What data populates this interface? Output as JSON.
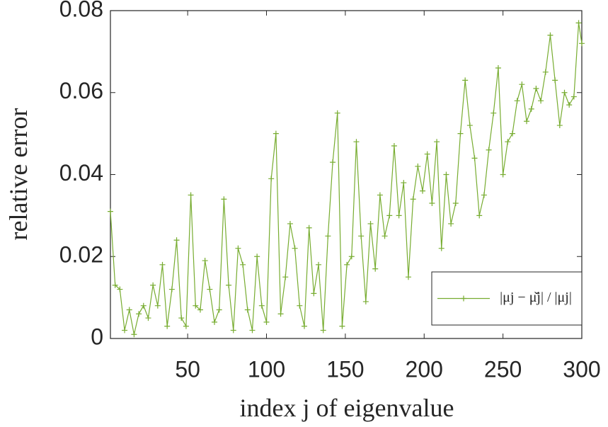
{
  "chart_data": {
    "type": "line",
    "xlabel": "index j of eigenvalue",
    "ylabel": "relative error",
    "x": [
      1,
      4,
      7,
      10,
      13,
      16,
      19,
      22,
      25,
      28,
      31,
      34,
      37,
      40,
      43,
      46,
      49,
      52,
      55,
      58,
      61,
      64,
      67,
      70,
      73,
      76,
      79,
      82,
      85,
      88,
      91,
      94,
      97,
      100,
      103,
      106,
      109,
      112,
      115,
      118,
      121,
      124,
      127,
      130,
      133,
      136,
      139,
      142,
      145,
      148,
      151,
      154,
      157,
      160,
      163,
      166,
      169,
      172,
      175,
      178,
      181,
      184,
      187,
      190,
      193,
      196,
      199,
      202,
      205,
      208,
      211,
      214,
      217,
      220,
      223,
      226,
      229,
      232,
      235,
      238,
      241,
      244,
      247,
      250,
      253,
      256,
      259,
      262,
      265,
      268,
      271,
      274,
      277,
      280,
      283,
      286,
      289,
      292,
      295,
      298,
      300
    ],
    "series": [
      {
        "name": "|μj − μ̌j| / |μj|",
        "color": "#77ac30",
        "values": [
          0.031,
          0.013,
          0.012,
          0.002,
          0.007,
          0.001,
          0.006,
          0.008,
          0.005,
          0.013,
          0.008,
          0.018,
          0.003,
          0.012,
          0.024,
          0.005,
          0.003,
          0.035,
          0.008,
          0.007,
          0.019,
          0.012,
          0.004,
          0.007,
          0.034,
          0.013,
          0.002,
          0.022,
          0.018,
          0.007,
          0.002,
          0.02,
          0.008,
          0.004,
          0.039,
          0.05,
          0.006,
          0.015,
          0.028,
          0.022,
          0.008,
          0.003,
          0.027,
          0.011,
          0.018,
          0.002,
          0.025,
          0.043,
          0.055,
          0.003,
          0.018,
          0.02,
          0.048,
          0.025,
          0.009,
          0.028,
          0.017,
          0.035,
          0.025,
          0.03,
          0.047,
          0.03,
          0.038,
          0.015,
          0.034,
          0.042,
          0.036,
          0.045,
          0.033,
          0.048,
          0.022,
          0.04,
          0.028,
          0.033,
          0.05,
          0.063,
          0.052,
          0.044,
          0.03,
          0.035,
          0.046,
          0.055,
          0.066,
          0.04,
          0.048,
          0.05,
          0.058,
          0.062,
          0.053,
          0.056,
          0.061,
          0.058,
          0.065,
          0.074,
          0.063,
          0.052,
          0.06,
          0.057,
          0.059,
          0.077,
          0.072
        ]
      }
    ],
    "xlim": [
      1,
      300
    ],
    "xticks": [
      50,
      100,
      150,
      200,
      250,
      300
    ],
    "ylim": [
      0,
      0.08
    ],
    "yticks": [
      0,
      0.02,
      0.04,
      0.06,
      0.08
    ],
    "legend": "lower right"
  }
}
